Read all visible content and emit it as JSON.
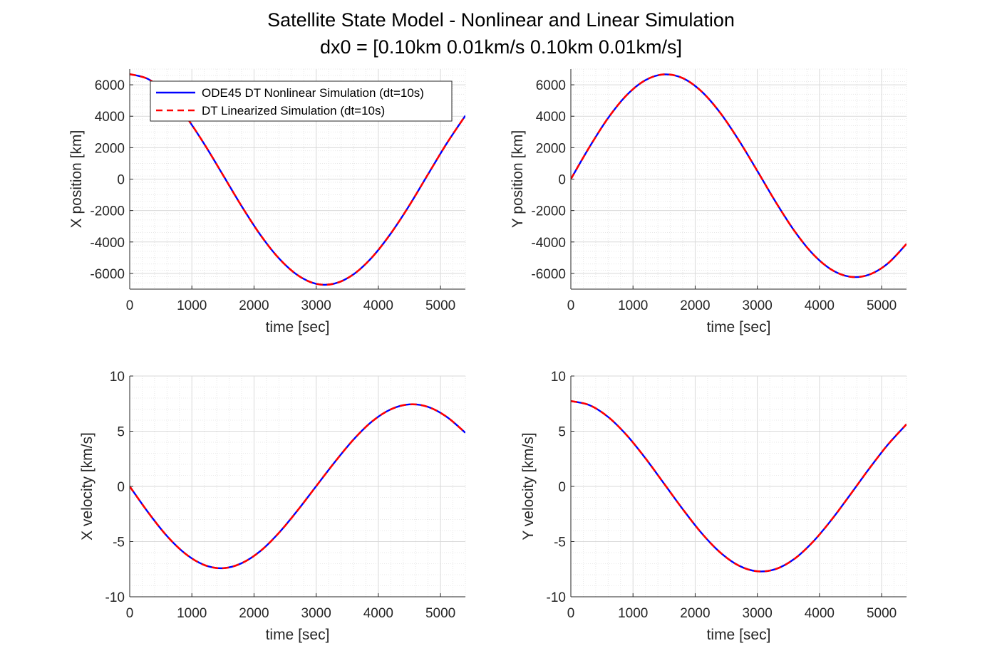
{
  "figure": {
    "title_line1": "Satellite State Model - Nonlinear and Linear Simulation",
    "title_line2": "dx0 = [0.10km 0.01km/s 0.10km 0.01km/s]"
  },
  "colors": {
    "nonlinear": "#0000ff",
    "linear": "#ff0000",
    "grid": "#d9d9d9",
    "axes": "#262626"
  },
  "chart_data": [
    {
      "type": "line",
      "id": "x-position",
      "xlabel": "time [sec]",
      "ylabel": "X position [km]",
      "xlim": [
        0,
        5400
      ],
      "ylim": [
        -7000,
        7000
      ],
      "xticks": [
        0,
        1000,
        2000,
        3000,
        4000,
        5000
      ],
      "yticks": [
        -6000,
        -4000,
        -2000,
        0,
        2000,
        4000,
        6000
      ],
      "grid": true,
      "minor_grid": true,
      "legend": {
        "location": "top-left",
        "entries": [
          "ODE45 DT Nonlinear Simulation (dt=10s)",
          "DT Linearized Simulation (dt=10s)"
        ]
      },
      "series": [
        {
          "name": "ODE45 DT Nonlinear Simulation (dt=10s)",
          "style": "solid",
          "color": "#0000ff",
          "x": [
            0,
            300,
            600,
            900,
            1200,
            1500,
            1800,
            2100,
            2400,
            2700,
            3000,
            3300,
            3600,
            3900,
            4200,
            4500,
            4800,
            5100,
            5400
          ],
          "y": [
            6678,
            6358,
            5432,
            4008,
            2229,
            264,
            -1718,
            -3538,
            -5038,
            -6107,
            -6663,
            -6640,
            -6059,
            -4967,
            -3460,
            -1665,
            311,
            2268,
            4037
          ]
        },
        {
          "name": "DT Linearized Simulation (dt=10s)",
          "style": "dashed",
          "color": "#ff0000",
          "x": [
            0,
            300,
            600,
            900,
            1200,
            1500,
            1800,
            2100,
            2400,
            2700,
            3000,
            3300,
            3600,
            3900,
            4200,
            4500,
            4800,
            5100,
            5400
          ],
          "y": [
            6678,
            6358,
            5432,
            4008,
            2229,
            264,
            -1718,
            -3538,
            -5038,
            -6107,
            -6663,
            -6640,
            -6059,
            -4967,
            -3460,
            -1665,
            311,
            2268,
            4037
          ]
        }
      ]
    },
    {
      "type": "line",
      "id": "y-position",
      "xlabel": "time [sec]",
      "ylabel": "Y position [km]",
      "xlim": [
        0,
        5400
      ],
      "ylim": [
        -7000,
        7000
      ],
      "xticks": [
        0,
        1000,
        2000,
        3000,
        4000,
        5000
      ],
      "yticks": [
        -6000,
        -4000,
        -2000,
        0,
        2000,
        4000,
        6000
      ],
      "grid": true,
      "minor_grid": true,
      "series": [
        {
          "name": "ODE45 DT Nonlinear Simulation (dt=10s)",
          "style": "solid",
          "color": "#0000ff",
          "x": [
            0,
            300,
            600,
            900,
            1200,
            1500,
            1800,
            2100,
            2400,
            2700,
            3000,
            3300,
            3600,
            3900,
            4200,
            4500,
            4800,
            5100,
            5400
          ],
          "y": [
            0,
            2042,
            3886,
            5348,
            6294,
            6661,
            6423,
            5587,
            4233,
            2485,
            520,
            -1484,
            -3314,
            -4788,
            -5777,
            -6215,
            -6075,
            -5365,
            -4123
          ]
        },
        {
          "name": "DT Linearized Simulation (dt=10s)",
          "style": "dashed",
          "color": "#ff0000",
          "x": [
            0,
            300,
            600,
            900,
            1200,
            1500,
            1800,
            2100,
            2400,
            2700,
            3000,
            3300,
            3600,
            3900,
            4200,
            4500,
            4800,
            5100,
            5400
          ],
          "y": [
            0,
            2042,
            3886,
            5348,
            6294,
            6661,
            6423,
            5587,
            4233,
            2485,
            520,
            -1484,
            -3314,
            -4788,
            -5777,
            -6215,
            -6075,
            -5365,
            -4123
          ]
        }
      ]
    },
    {
      "type": "line",
      "id": "x-velocity",
      "xlabel": "time [sec]",
      "ylabel": "X velocity [km/s]",
      "xlim": [
        0,
        5400
      ],
      "ylim": [
        -10,
        10
      ],
      "xticks": [
        0,
        1000,
        2000,
        3000,
        4000,
        5000
      ],
      "yticks": [
        -10,
        -5,
        0,
        5,
        10
      ],
      "grid": true,
      "minor_grid": true,
      "series": [
        {
          "name": "ODE45 DT Nonlinear Simulation (dt=10s)",
          "style": "solid",
          "color": "#0000ff",
          "x": [
            0,
            300,
            600,
            900,
            1200,
            1500,
            1800,
            2100,
            2400,
            2700,
            3000,
            3300,
            3600,
            3900,
            4200,
            4500,
            4800,
            5100,
            5400
          ],
          "y": [
            0,
            -2.38,
            -4.5,
            -6.12,
            -7.12,
            -7.41,
            -6.96,
            -5.87,
            -4.21,
            -2.18,
            0.02,
            2.21,
            4.24,
            5.89,
            6.98,
            7.43,
            7.2,
            6.3,
            4.86
          ]
        },
        {
          "name": "DT Linearized Simulation (dt=10s)",
          "style": "dashed",
          "color": "#ff0000",
          "x": [
            0,
            300,
            600,
            900,
            1200,
            1500,
            1800,
            2100,
            2400,
            2700,
            3000,
            3300,
            3600,
            3900,
            4200,
            4500,
            4800,
            5100,
            5400
          ],
          "y": [
            0,
            -2.38,
            -4.5,
            -6.12,
            -7.12,
            -7.41,
            -6.96,
            -5.87,
            -4.21,
            -2.18,
            0.02,
            2.21,
            4.24,
            5.89,
            6.98,
            7.43,
            7.2,
            6.3,
            4.86
          ]
        }
      ]
    },
    {
      "type": "line",
      "id": "y-velocity",
      "xlabel": "time [sec]",
      "ylabel": "Y velocity [km/s]",
      "xlim": [
        0,
        5400
      ],
      "ylim": [
        -10,
        10
      ],
      "xticks": [
        0,
        1000,
        2000,
        3000,
        4000,
        5000
      ],
      "yticks": [
        -10,
        -5,
        0,
        5,
        10
      ],
      "grid": true,
      "minor_grid": true,
      "series": [
        {
          "name": "ODE45 DT Nonlinear Simulation (dt=10s)",
          "style": "solid",
          "color": "#0000ff",
          "x": [
            0,
            300,
            600,
            900,
            1200,
            1500,
            1800,
            2100,
            2400,
            2700,
            3000,
            3300,
            3600,
            3900,
            4200,
            4500,
            4800,
            5100,
            5400
          ],
          "y": [
            7.73,
            7.36,
            6.29,
            4.63,
            2.55,
            0.25,
            -2.06,
            -4.21,
            -5.97,
            -7.17,
            -7.69,
            -7.48,
            -6.55,
            -4.99,
            -2.98,
            -0.71,
            1.61,
            3.78,
            5.63
          ]
        },
        {
          "name": "DT Linearized Simulation (dt=10s)",
          "style": "dashed",
          "color": "#ff0000",
          "x": [
            0,
            300,
            600,
            900,
            1200,
            1500,
            1800,
            2100,
            2400,
            2700,
            3000,
            3300,
            3600,
            3900,
            4200,
            4500,
            4800,
            5100,
            5400
          ],
          "y": [
            7.73,
            7.36,
            6.29,
            4.63,
            2.55,
            0.25,
            -2.06,
            -4.21,
            -5.97,
            -7.17,
            -7.69,
            -7.48,
            -6.55,
            -4.99,
            -2.98,
            -0.71,
            1.61,
            3.78,
            5.63
          ]
        }
      ]
    }
  ]
}
